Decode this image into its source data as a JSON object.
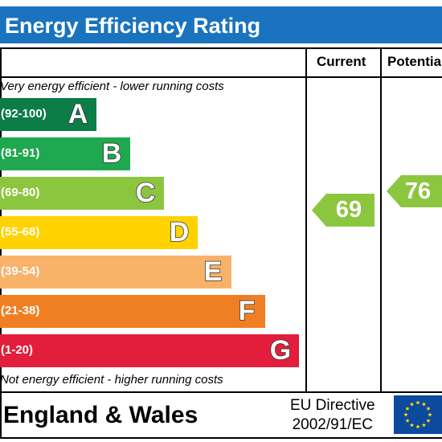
{
  "title": "Energy Efficiency Rating",
  "columns": {
    "current": "Current",
    "potential": "Potential"
  },
  "top_caption": "Very energy efficient - lower running costs",
  "bottom_caption": "Not energy efficient - higher running costs",
  "bands": [
    {
      "range": "(92-100)",
      "letter": "A",
      "color": "#0c7d47"
    },
    {
      "range": "(81-91)",
      "letter": "B",
      "color": "#1fa84f"
    },
    {
      "range": "(69-80)",
      "letter": "C",
      "color": "#8cc63f"
    },
    {
      "range": "(55-68)",
      "letter": "D",
      "color": "#ffd200"
    },
    {
      "range": "(39-54)",
      "letter": "E",
      "color": "#f9b26a"
    },
    {
      "range": "(21-38)",
      "letter": "F",
      "color": "#f07f23"
    },
    {
      "range": "(1-20)",
      "letter": "G",
      "color": "#e31d3c"
    }
  ],
  "current_rating": {
    "value": "69",
    "color": "#8cc63f"
  },
  "potential_rating": {
    "value": "76",
    "color": "#8cc63f"
  },
  "footer": {
    "region": "England & Wales",
    "directive_line1": "EU Directive",
    "directive_line2": "2002/91/EC",
    "flag_color": "#0c4a9e",
    "star_color": "#ffdd00"
  }
}
